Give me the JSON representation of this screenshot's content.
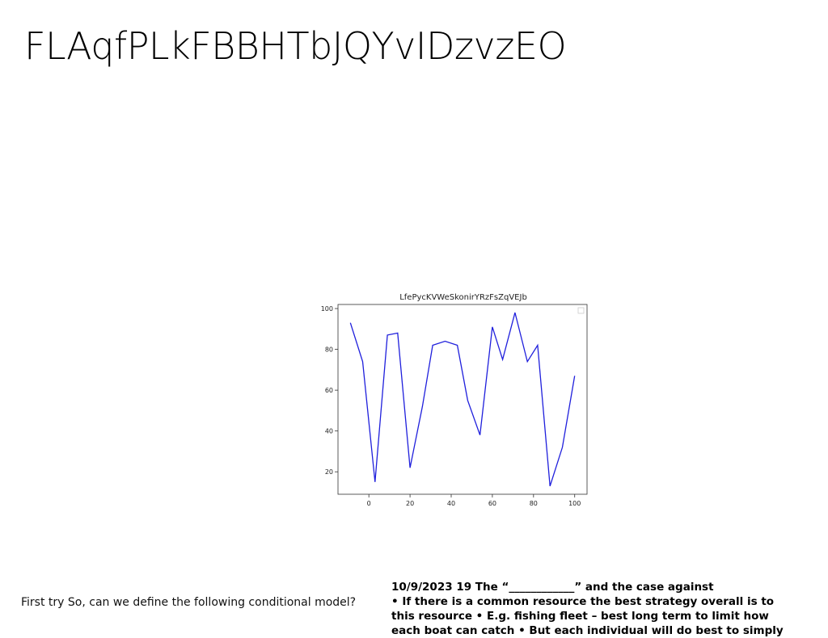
{
  "slide": {
    "title": "FLAqfPLkFBBHTbJQYvIDzvzEO",
    "caption_left": "First try So, can we define the following conditional model?",
    "notes_lines": [
      "10/9/2023 19 The “____________” and the case against",
      "• If there is a common resource the best strategy overall is to",
      "this resource • E.g. fishing fleet – best long term to limit how",
      "each boat can catch • But each individual will do best to simply"
    ]
  },
  "chart_data": {
    "type": "line",
    "title": "LfePycKVWeSkonirYRzFsZqVEJb",
    "x": [
      -9,
      -3,
      3,
      9,
      14,
      20,
      26,
      31,
      37,
      43,
      48,
      54,
      60,
      65,
      71,
      77,
      82,
      88,
      94,
      100
    ],
    "y": [
      93,
      74,
      15,
      87,
      88,
      22,
      52,
      82,
      84,
      82,
      55,
      38,
      91,
      75,
      98,
      74,
      82,
      13,
      32,
      67
    ],
    "xlim": [
      -15,
      106
    ],
    "ylim": [
      9,
      102
    ],
    "xticks": [
      0,
      20,
      40,
      60,
      80,
      100
    ],
    "yticks": [
      20,
      40,
      60,
      80,
      100
    ],
    "line_color": "#1f1fdc",
    "legend": "top-right",
    "grid": false
  }
}
